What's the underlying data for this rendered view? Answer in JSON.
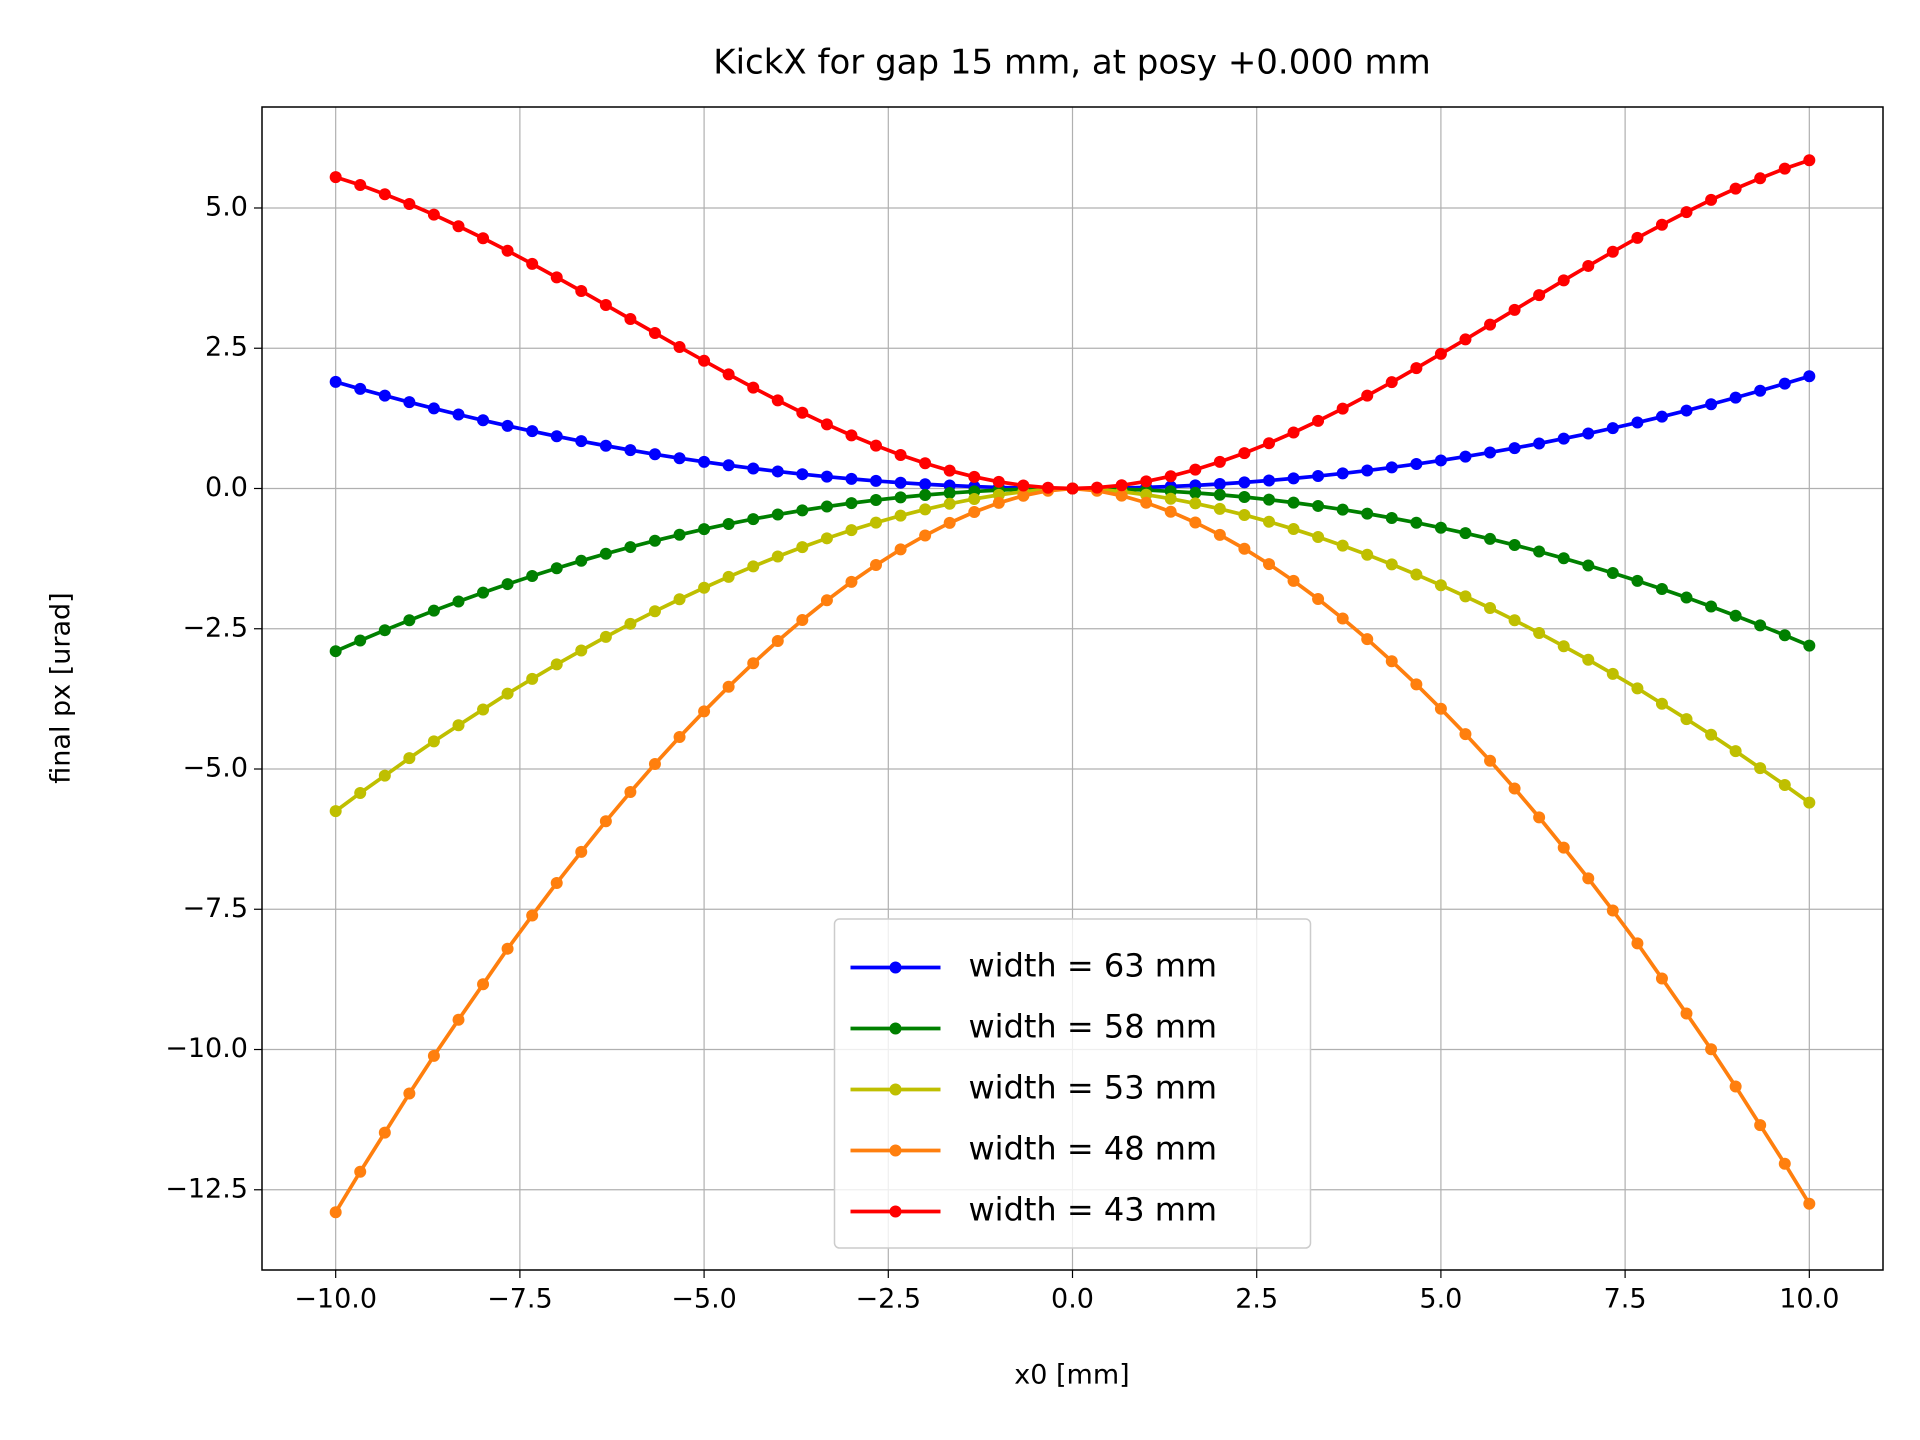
{
  "chart_data": {
    "type": "line",
    "title": "KickX for gap 15 mm, at posy +0.000 mm",
    "xlabel": "x0 [mm]",
    "ylabel": "final px [urad]",
    "x": [
      -10,
      -9.667,
      -9.333,
      -9,
      -8.667,
      -8.333,
      -8,
      -7.667,
      -7.333,
      -7,
      -6.667,
      -6.333,
      -6,
      -5.667,
      -5.333,
      -5,
      -4.667,
      -4.333,
      -4,
      -3.667,
      -3.333,
      -3,
      -2.667,
      -2.333,
      -2,
      -1.667,
      -1.333,
      -1,
      -0.667,
      -0.333,
      0,
      0.333,
      0.667,
      1,
      1.333,
      1.667,
      2,
      2.333,
      2.667,
      3,
      3.333,
      3.667,
      4,
      4.333,
      4.667,
      5,
      5.333,
      5.667,
      6,
      6.333,
      6.667,
      7,
      7.333,
      7.667,
      8,
      8.333,
      8.667,
      9,
      9.333,
      9.667,
      10
    ],
    "series": [
      {
        "name": "width = 63 mm",
        "color": "#0000ff",
        "values": [
          1.9,
          1.775,
          1.655,
          1.539,
          1.427,
          1.319,
          1.216,
          1.117,
          1.022,
          0.931,
          0.844,
          0.762,
          0.684,
          0.61,
          0.54,
          0.475,
          0.414,
          0.357,
          0.304,
          0.255,
          0.211,
          0.171,
          0.135,
          0.103,
          0.076,
          0.053,
          0.034,
          0.019,
          0.008,
          0.002,
          0,
          0.002,
          0.009,
          0.02,
          0.036,
          0.056,
          0.08,
          0.109,
          0.142,
          0.18,
          0.222,
          0.269,
          0.32,
          0.376,
          0.436,
          0.5,
          0.569,
          0.642,
          0.72,
          0.802,
          0.889,
          0.98,
          1.076,
          1.176,
          1.28,
          1.389,
          1.502,
          1.62,
          1.742,
          1.869,
          2.0
        ]
      },
      {
        "name": "width = 58 mm",
        "color": "#008000",
        "values": [
          -2.9,
          -2.71,
          -2.526,
          -2.349,
          -2.178,
          -2.014,
          -1.856,
          -1.705,
          -1.56,
          -1.421,
          -1.289,
          -1.163,
          -1.044,
          -0.931,
          -0.825,
          -0.725,
          -0.632,
          -0.545,
          -0.464,
          -0.39,
          -0.322,
          -0.261,
          -0.206,
          -0.158,
          -0.116,
          -0.081,
          -0.052,
          -0.029,
          -0.013,
          -0.003,
          0,
          -0.003,
          -0.012,
          -0.028,
          -0.05,
          -0.078,
          -0.112,
          -0.152,
          -0.199,
          -0.252,
          -0.311,
          -0.376,
          -0.448,
          -0.526,
          -0.61,
          -0.7,
          -0.796,
          -0.899,
          -1.008,
          -1.123,
          -1.244,
          -1.372,
          -1.506,
          -1.646,
          -1.792,
          -1.944,
          -2.103,
          -2.268,
          -2.439,
          -2.616,
          -2.8
        ]
      },
      {
        "name": "width = 53 mm",
        "color": "#bfbf00",
        "values": [
          -5.75,
          -5.428,
          -5.118,
          -4.807,
          -4.508,
          -4.221,
          -3.939,
          -3.657,
          -3.393,
          -3.134,
          -2.887,
          -2.644,
          -2.412,
          -2.188,
          -1.975,
          -1.77,
          -1.575,
          -1.389,
          -1.212,
          -1.045,
          -0.888,
          -0.742,
          -0.608,
          -0.484,
          -0.373,
          -0.273,
          -0.187,
          -0.114,
          -0.058,
          -0.018,
          0,
          -0.017,
          -0.056,
          -0.111,
          -0.182,
          -0.266,
          -0.363,
          -0.472,
          -0.592,
          -0.723,
          -0.865,
          -1.018,
          -1.18,
          -1.352,
          -1.534,
          -1.724,
          -1.923,
          -2.131,
          -2.349,
          -2.575,
          -2.812,
          -3.052,
          -3.304,
          -3.562,
          -3.836,
          -4.11,
          -4.39,
          -4.682,
          -4.984,
          -5.286,
          -5.6
        ]
      },
      {
        "name": "width = 48 mm",
        "color": "#ff7f0e",
        "values": [
          -12.9,
          -12.178,
          -11.481,
          -10.784,
          -10.114,
          -9.469,
          -8.837,
          -8.204,
          -7.611,
          -7.031,
          -6.477,
          -5.931,
          -5.41,
          -4.91,
          -4.43,
          -3.972,
          -3.533,
          -3.115,
          -2.718,
          -2.345,
          -1.993,
          -1.665,
          -1.364,
          -1.086,
          -0.837,
          -0.613,
          -0.419,
          -0.257,
          -0.129,
          -0.04,
          0,
          -0.04,
          -0.128,
          -0.254,
          -0.414,
          -0.606,
          -0.827,
          -1.074,
          -1.348,
          -1.646,
          -1.97,
          -2.318,
          -2.686,
          -3.079,
          -3.492,
          -3.926,
          -4.378,
          -4.853,
          -5.347,
          -5.862,
          -6.402,
          -6.949,
          -7.523,
          -8.109,
          -8.734,
          -9.359,
          -9.996,
          -10.659,
          -11.348,
          -12.036,
          -12.75
        ]
      },
      {
        "name": "width = 43 mm",
        "color": "#ff0000",
        "values": [
          5.55,
          5.409,
          5.245,
          5.071,
          4.881,
          4.675,
          4.461,
          4.238,
          4.003,
          3.764,
          3.52,
          3.27,
          3.021,
          2.771,
          2.521,
          2.276,
          2.035,
          1.798,
          1.57,
          1.351,
          1.143,
          0.947,
          0.765,
          0.598,
          0.45,
          0.319,
          0.208,
          0.119,
          0.054,
          0.014,
          0,
          0.015,
          0.057,
          0.126,
          0.219,
          0.336,
          0.474,
          0.631,
          0.807,
          0.998,
          1.205,
          1.424,
          1.655,
          1.895,
          2.145,
          2.399,
          2.657,
          2.921,
          3.184,
          3.447,
          3.71,
          3.967,
          4.219,
          4.467,
          4.702,
          4.927,
          5.145,
          5.345,
          5.529,
          5.701,
          5.85
        ]
      }
    ],
    "xlim": [
      -11,
      11
    ],
    "ylim": [
      -13.93,
      6.8
    ],
    "xticks": [
      {
        "value": -10,
        "label": "−10.0"
      },
      {
        "value": -7.5,
        "label": "−7.5"
      },
      {
        "value": -5,
        "label": "−5.0"
      },
      {
        "value": -2.5,
        "label": "−2.5"
      },
      {
        "value": 0,
        "label": "0.0"
      },
      {
        "value": 2.5,
        "label": "2.5"
      },
      {
        "value": 5,
        "label": "5.0"
      },
      {
        "value": 7.5,
        "label": "7.5"
      },
      {
        "value": 10,
        "label": "10.0"
      }
    ],
    "yticks": [
      {
        "value": -12.5,
        "label": "−12.5"
      },
      {
        "value": -10,
        "label": "−10.0"
      },
      {
        "value": -7.5,
        "label": "−7.5"
      },
      {
        "value": -5,
        "label": "−5.0"
      },
      {
        "value": -2.5,
        "label": "−2.5"
      },
      {
        "value": 0,
        "label": "0.0"
      },
      {
        "value": 2.5,
        "label": "2.5"
      },
      {
        "value": 5,
        "label": "5.0"
      }
    ],
    "grid": true,
    "legend": "lower center"
  }
}
